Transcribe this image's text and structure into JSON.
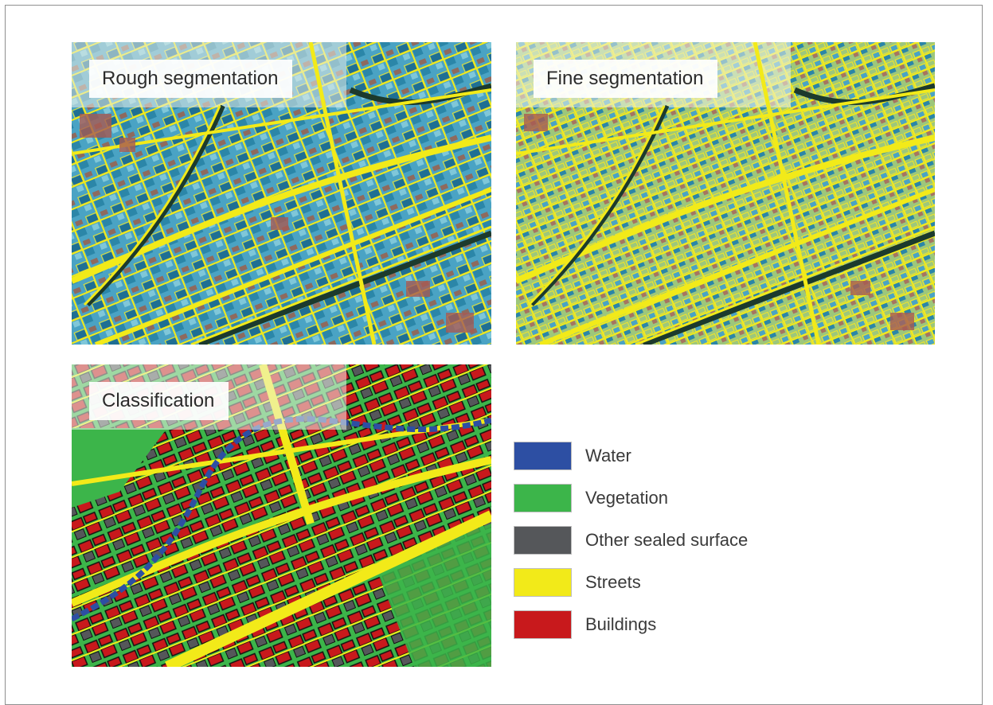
{
  "panels": {
    "rough": {
      "label": "Rough segmentation"
    },
    "fine": {
      "label": "Fine segmentation"
    },
    "classification": {
      "label": "Classification"
    }
  },
  "legend": [
    {
      "label": "Water",
      "color": "#2d4fa3"
    },
    {
      "label": "Vegetation",
      "color": "#3cb54a"
    },
    {
      "label": "Other sealed surface",
      "color": "#55575a"
    },
    {
      "label": "Streets",
      "color": "#f2ea19"
    },
    {
      "label": "Buildings",
      "color": "#c8191c"
    }
  ],
  "colors": {
    "segment_outline": "#f2ea19",
    "rough_base": "#4fa6c2",
    "fine_base": "#8fbe7c",
    "frame_border": "#8f8f8f"
  }
}
